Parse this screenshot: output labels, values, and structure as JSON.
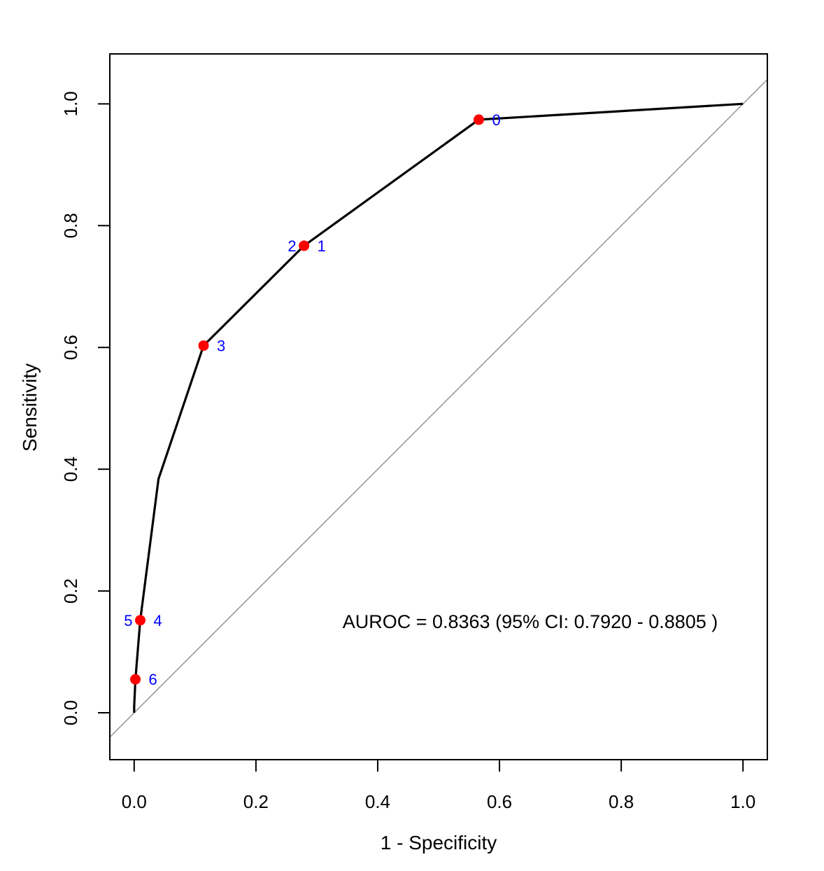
{
  "chart_data": {
    "type": "line",
    "title": "",
    "xlabel": "1 - Specificity",
    "ylabel": "Sensitivity",
    "xlim": [
      -0.04,
      1.04
    ],
    "ylim": [
      -0.077,
      1.082
    ],
    "x_ticks": [
      0.0,
      0.2,
      0.4,
      0.6,
      0.8,
      1.0
    ],
    "y_ticks": [
      0.0,
      0.2,
      0.4,
      0.6,
      0.8,
      1.0
    ],
    "x_tick_labels": [
      "0.0",
      "0.2",
      "0.4",
      "0.6",
      "0.8",
      "1.0"
    ],
    "y_tick_labels": [
      "0.0",
      "0.2",
      "0.4",
      "0.6",
      "0.8",
      "1.0"
    ],
    "grid": false,
    "curve": {
      "x": [
        0.0,
        0.0,
        0.002,
        0.01,
        0.04,
        0.114,
        0.279,
        0.279,
        0.566,
        1.0
      ],
      "y": [
        0.0,
        0.01,
        0.055,
        0.152,
        0.384,
        0.603,
        0.767,
        0.767,
        0.974,
        1.0
      ],
      "color": "#000000"
    },
    "reference_line": {
      "x": [
        -0.04,
        1.04
      ],
      "y": [
        -0.04,
        1.04
      ],
      "color": "#999999"
    },
    "points": [
      {
        "label": "0",
        "x": 0.566,
        "y": 0.974,
        "side": "right"
      },
      {
        "label": "1",
        "x": 0.279,
        "y": 0.767,
        "side": "right"
      },
      {
        "label": "2",
        "x": 0.279,
        "y": 0.767,
        "side": "left"
      },
      {
        "label": "3",
        "x": 0.114,
        "y": 0.603,
        "side": "right"
      },
      {
        "label": "4",
        "x": 0.01,
        "y": 0.152,
        "side": "right"
      },
      {
        "label": "5",
        "x": 0.01,
        "y": 0.152,
        "side": "left"
      },
      {
        "label": "6",
        "x": 0.002,
        "y": 0.055,
        "side": "right"
      }
    ],
    "point_color": "#ff0000",
    "label_color": "#0000ff",
    "annotation": {
      "text": "AUROC = 0.8363 (95% CI: 0.7920 - 0.8805 )",
      "x": 0.65,
      "y": 0.152
    }
  }
}
